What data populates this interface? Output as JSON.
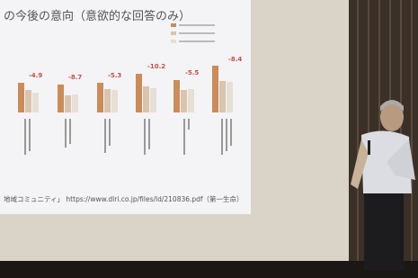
{
  "slide": {
    "title": "の今後の意向（意欲的な回答のみ）",
    "change_labels": [
      "-4.9",
      "-8.7",
      "-5.3",
      "-10.2",
      "-5.5",
      "-8.4"
    ],
    "source": "地域コミュニティ」 https://www.dlri.co.jp/files/ld/210836.pdf（第一生命）"
  }
}
